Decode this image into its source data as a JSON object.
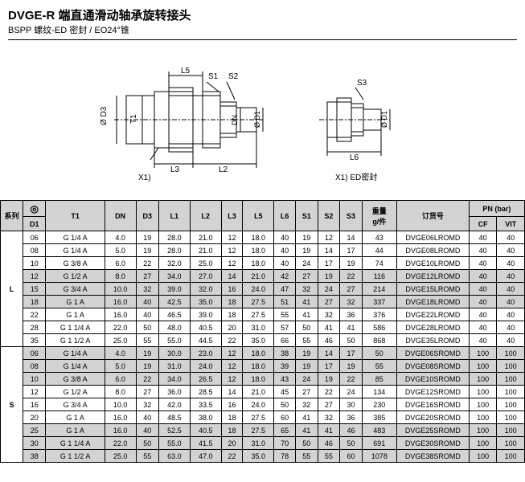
{
  "title": "DVGE-R  端直通滑动轴承旋转接头",
  "subtitle": "BSPP 螺纹-ED 密封 / EO24°锥",
  "ed_seal_label": "X1) ED密封",
  "diagram_labels": {
    "l5": "L5",
    "s1": "S1",
    "s2": "S2",
    "s3": "S3",
    "d3": "Ø D3",
    "t1": "T1",
    "dn": "DN",
    "d1": "Ø D1",
    "d1b": "Ø D1",
    "l3": "L3",
    "l2": "L2",
    "l6": "L6",
    "x1": "X1)"
  },
  "headers": {
    "series": "系列",
    "d1": "D1",
    "t1": "T1",
    "dn": "DN",
    "d3": "D3",
    "l1": "L1",
    "l2": "L2",
    "l3": "L3",
    "l5": "L5",
    "l6": "L6",
    "s1": "S1",
    "s2": "S2",
    "s3": "S3",
    "weight": "重量\ng/件",
    "order": "订货号",
    "pn": "PN (bar)",
    "cf": "CF",
    "vit": "VIT"
  },
  "series": [
    {
      "name": "L",
      "rows": [
        {
          "gray": false,
          "d1": "06",
          "t1": "G 1/4 A",
          "dn": "4.0",
          "d3": "19",
          "l1": "28.0",
          "l2": "21.0",
          "l3": "12",
          "l5": "18.0",
          "l6": "40",
          "s1": "19",
          "s2": "12",
          "s3": "14",
          "wt": "43",
          "order": "DVGE06LROMD",
          "cf": "40",
          "vit": "40"
        },
        {
          "gray": false,
          "d1": "08",
          "t1": "G 1/4 A",
          "dn": "5.0",
          "d3": "19",
          "l1": "28.0",
          "l2": "21.0",
          "l3": "12",
          "l5": "18.0",
          "l6": "40",
          "s1": "19",
          "s2": "14",
          "s3": "17",
          "wt": "44",
          "order": "DVGE08LROMD",
          "cf": "40",
          "vit": "40"
        },
        {
          "gray": false,
          "d1": "10",
          "t1": "G 3/8 A",
          "dn": "6.0",
          "d3": "22",
          "l1": "32.0",
          "l2": "25.0",
          "l3": "12",
          "l5": "18.0",
          "l6": "40",
          "s1": "24",
          "s2": "17",
          "s3": "19",
          "wt": "74",
          "order": "DVGE10LROMD",
          "cf": "40",
          "vit": "40"
        },
        {
          "gray": true,
          "d1": "12",
          "t1": "G 1/2 A",
          "dn": "8.0",
          "d3": "27",
          "l1": "34.0",
          "l2": "27.0",
          "l3": "14",
          "l5": "21.0",
          "l6": "42",
          "s1": "27",
          "s2": "19",
          "s3": "22",
          "wt": "116",
          "order": "DVGE12LROMD",
          "cf": "40",
          "vit": "40"
        },
        {
          "gray": true,
          "d1": "15",
          "t1": "G 3/4 A",
          "dn": "10.0",
          "d3": "32",
          "l1": "39.0",
          "l2": "32.0",
          "l3": "16",
          "l5": "24.0",
          "l6": "47",
          "s1": "32",
          "s2": "24",
          "s3": "27",
          "wt": "214",
          "order": "DVGE15LROMD",
          "cf": "40",
          "vit": "40"
        },
        {
          "gray": true,
          "d1": "18",
          "t1": "G 1 A",
          "dn": "16.0",
          "d3": "40",
          "l1": "42.5",
          "l2": "35.0",
          "l3": "18",
          "l5": "27.5",
          "l6": "51",
          "s1": "41",
          "s2": "27",
          "s3": "32",
          "wt": "337",
          "order": "DVGE18LROMD",
          "cf": "40",
          "vit": "40"
        },
        {
          "gray": false,
          "d1": "22",
          "t1": "G 1 A",
          "dn": "16.0",
          "d3": "40",
          "l1": "46.5",
          "l2": "39.0",
          "l3": "18",
          "l5": "27.5",
          "l6": "55",
          "s1": "41",
          "s2": "32",
          "s3": "36",
          "wt": "376",
          "order": "DVGE22LROMD",
          "cf": "40",
          "vit": "40"
        },
        {
          "gray": false,
          "d1": "28",
          "t1": "G 1 1/4 A",
          "dn": "22.0",
          "d3": "50",
          "l1": "48.0",
          "l2": "40.5",
          "l3": "20",
          "l5": "31.0",
          "l6": "57",
          "s1": "50",
          "s2": "41",
          "s3": "41",
          "wt": "586",
          "order": "DVGE28LROMD",
          "cf": "40",
          "vit": "40"
        },
        {
          "gray": false,
          "d1": "35",
          "t1": "G 1 1/2 A",
          "dn": "25.0",
          "d3": "55",
          "l1": "55.0",
          "l2": "44.5",
          "l3": "22",
          "l5": "35.0",
          "l6": "66",
          "s1": "55",
          "s2": "46",
          "s3": "50",
          "wt": "868",
          "order": "DVGE35LROMD",
          "cf": "40",
          "vit": "40"
        }
      ]
    },
    {
      "name": "S",
      "rows": [
        {
          "gray": true,
          "d1": "06",
          "t1": "G 1/4 A",
          "dn": "4.0",
          "d3": "19",
          "l1": "30.0",
          "l2": "23.0",
          "l3": "12",
          "l5": "18.0",
          "l6": "38",
          "s1": "19",
          "s2": "14",
          "s3": "17",
          "wt": "50",
          "order": "DVGE06SROMD",
          "cf": "100",
          "vit": "100"
        },
        {
          "gray": true,
          "d1": "08",
          "t1": "G 1/4 A",
          "dn": "5.0",
          "d3": "19",
          "l1": "31.0",
          "l2": "24.0",
          "l3": "12",
          "l5": "18.0",
          "l6": "39",
          "s1": "19",
          "s2": "17",
          "s3": "19",
          "wt": "55",
          "order": "DVGE08SROMD",
          "cf": "100",
          "vit": "100"
        },
        {
          "gray": true,
          "d1": "10",
          "t1": "G 3/8 A",
          "dn": "6.0",
          "d3": "22",
          "l1": "34.0",
          "l2": "26.5",
          "l3": "12",
          "l5": "18.0",
          "l6": "43",
          "s1": "24",
          "s2": "19",
          "s3": "22",
          "wt": "85",
          "order": "DVGE10SROMD",
          "cf": "100",
          "vit": "100"
        },
        {
          "gray": false,
          "d1": "12",
          "t1": "G 1/2 A",
          "dn": "8.0",
          "d3": "27",
          "l1": "36.0",
          "l2": "28.5",
          "l3": "14",
          "l5": "21.0",
          "l6": "45",
          "s1": "27",
          "s2": "22",
          "s3": "24",
          "wt": "134",
          "order": "DVGE12SROMD",
          "cf": "100",
          "vit": "100"
        },
        {
          "gray": false,
          "d1": "16",
          "t1": "G 3/4 A",
          "dn": "10.0",
          "d3": "32",
          "l1": "42.0",
          "l2": "33.5",
          "l3": "16",
          "l5": "24.0",
          "l6": "50",
          "s1": "32",
          "s2": "27",
          "s3": "30",
          "wt": "230",
          "order": "DVGE16SROMD",
          "cf": "100",
          "vit": "100"
        },
        {
          "gray": false,
          "d1": "20",
          "t1": "G 1 A",
          "dn": "16.0",
          "d3": "40",
          "l1": "48.5",
          "l2": "38.0",
          "l3": "18",
          "l5": "27.5",
          "l6": "60",
          "s1": "41",
          "s2": "32",
          "s3": "36",
          "wt": "385",
          "order": "DVGE20SROMD",
          "cf": "100",
          "vit": "100"
        },
        {
          "gray": true,
          "d1": "25",
          "t1": "G 1 A",
          "dn": "16.0",
          "d3": "40",
          "l1": "52.5",
          "l2": "40.5",
          "l3": "18",
          "l5": "27.5",
          "l6": "65",
          "s1": "41",
          "s2": "41",
          "s3": "46",
          "wt": "483",
          "order": "DVGE25SROMD",
          "cf": "100",
          "vit": "100"
        },
        {
          "gray": true,
          "d1": "30",
          "t1": "G 1 1/4 A",
          "dn": "22.0",
          "d3": "50",
          "l1": "55.0",
          "l2": "41.5",
          "l3": "20",
          "l5": "31.0",
          "l6": "70",
          "s1": "50",
          "s2": "46",
          "s3": "50",
          "wt": "691",
          "order": "DVGE30SROMD",
          "cf": "100",
          "vit": "100"
        },
        {
          "gray": true,
          "d1": "38",
          "t1": "G 1 1/2 A",
          "dn": "25.0",
          "d3": "55",
          "l1": "63.0",
          "l2": "47.0",
          "l3": "22",
          "l5": "35.0",
          "l6": "78",
          "s1": "55",
          "s2": "55",
          "s3": "60",
          "wt": "1078",
          "order": "DVGE38SROMD",
          "cf": "100",
          "vit": "100"
        }
      ]
    }
  ]
}
